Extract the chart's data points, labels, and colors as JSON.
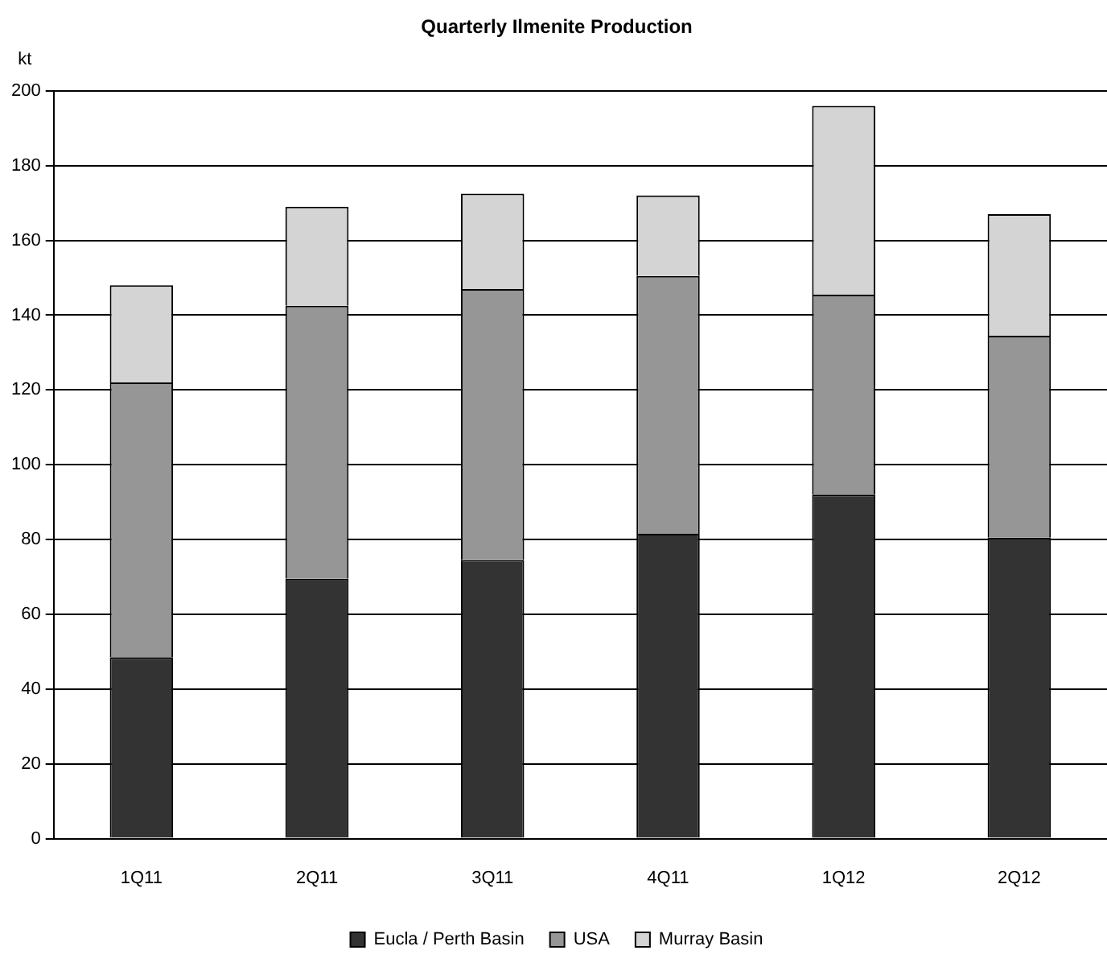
{
  "chart_data": {
    "type": "bar",
    "title": "Quarterly Ilmenite Production",
    "ylabel": "kt",
    "categories": [
      "1Q11",
      "2Q11",
      "3Q11",
      "4Q11",
      "1Q12",
      "2Q12"
    ],
    "stacked": true,
    "series": [
      {
        "name": "Eucla / Perth Basin",
        "color": "#333333",
        "values": [
          48.5,
          69.5,
          74.5,
          81.5,
          92,
          80.5
        ]
      },
      {
        "name": "USA",
        "color": "#969696",
        "values": [
          73.5,
          73,
          72.5,
          69,
          53.5,
          54
        ]
      },
      {
        "name": "Murray Basin",
        "color": "#d4d4d4",
        "values": [
          26,
          26.5,
          25.5,
          21.5,
          50.5,
          32.5
        ]
      }
    ],
    "ylim": [
      0,
      200
    ],
    "yticks": [
      0,
      20,
      40,
      60,
      80,
      100,
      120,
      140,
      160,
      180,
      200
    ],
    "grid": "y",
    "legend": "bottom"
  }
}
